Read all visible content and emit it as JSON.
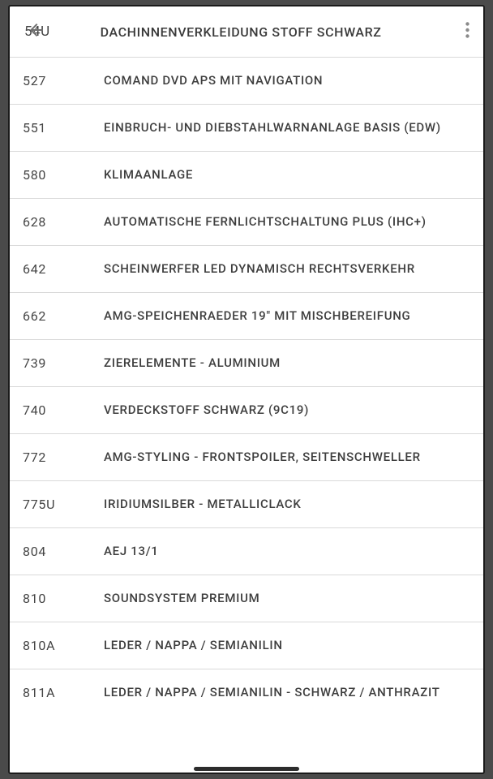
{
  "header": {
    "code": "54U",
    "title": "DACHINNENVERKLEIDUNG STOFF SCHWARZ"
  },
  "rows": [
    {
      "code": "527",
      "desc": "COMAND DVD APS MIT NAVIGATION"
    },
    {
      "code": "551",
      "desc": "EINBRUCH- UND DIEBSTAHLWARNANLAGE BASIS (EDW)"
    },
    {
      "code": "580",
      "desc": "KLIMAANLAGE"
    },
    {
      "code": "628",
      "desc": "AUTOMATISCHE FERNLICHTSCHALTUNG PLUS (IHC+)"
    },
    {
      "code": "642",
      "desc": "SCHEINWERFER LED DYNAMISCH RECHTSVERKEHR"
    },
    {
      "code": "662",
      "desc": "AMG-SPEICHENRAEDER 19\" MIT MISCHBEREIFUNG"
    },
    {
      "code": "739",
      "desc": "ZIERELEMENTE - ALUMINIUM"
    },
    {
      "code": "740",
      "desc": "VERDECKSTOFF SCHWARZ (9C19)"
    },
    {
      "code": "772",
      "desc": "AMG-STYLING - FRONTSPOILER, SEITENSCHWELLER"
    },
    {
      "code": "775U",
      "desc": "IRIDIUMSILBER - METALLICLACK"
    },
    {
      "code": "804",
      "desc": "AEJ 13/1"
    },
    {
      "code": "810",
      "desc": "SOUNDSYSTEM PREMIUM"
    },
    {
      "code": "810A",
      "desc": "LEDER / NAPPA / SEMIANILIN"
    },
    {
      "code": "811A",
      "desc": "LEDER / NAPPA / SEMIANILIN - SCHWARZ / ANTHRAZIT"
    }
  ]
}
